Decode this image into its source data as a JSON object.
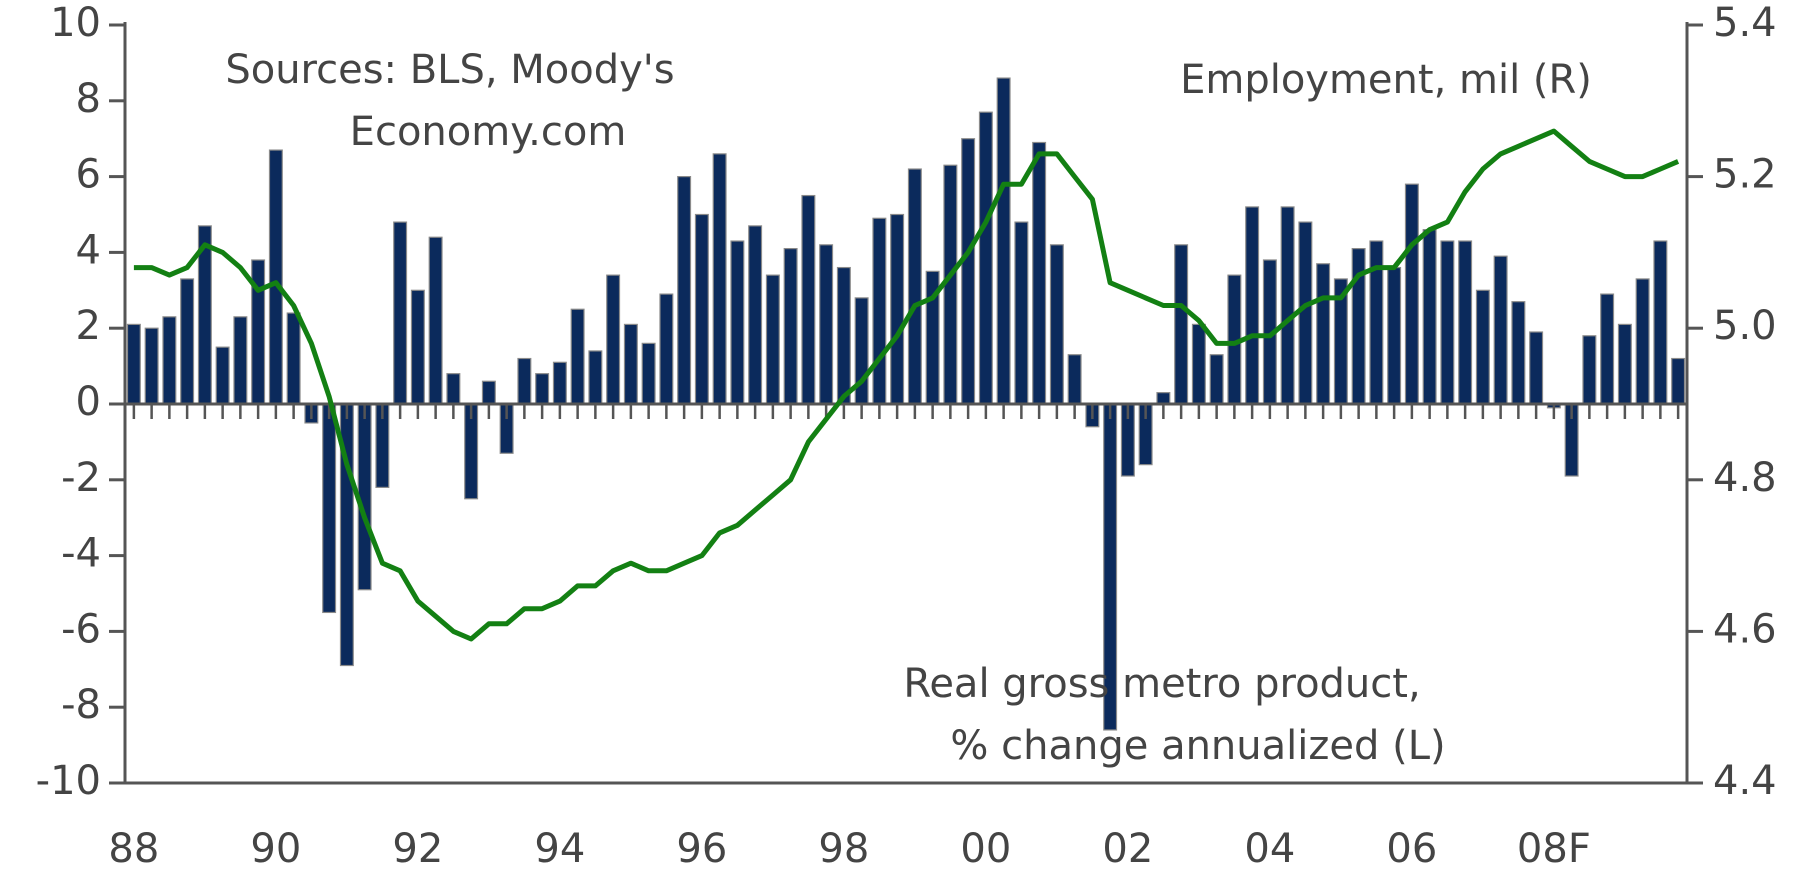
{
  "chart_data": {
    "type": "bar_line",
    "annotations": [
      [
        "Sources: BLS, Moody's",
        "Economy.com"
      ],
      [
        "Employment, mil (R)"
      ],
      [
        "Real gross metro product,",
        "% change annualized (L)"
      ]
    ],
    "categories": [
      "88",
      null,
      null,
      null,
      null,
      null,
      null,
      null,
      "90",
      null,
      null,
      null,
      null,
      null,
      null,
      null,
      "92",
      null,
      null,
      null,
      null,
      null,
      null,
      null,
      "94",
      null,
      null,
      null,
      null,
      null,
      null,
      null,
      "96",
      null,
      null,
      null,
      null,
      null,
      null,
      null,
      "98",
      null,
      null,
      null,
      null,
      null,
      null,
      null,
      "00",
      null,
      null,
      null,
      null,
      null,
      null,
      null,
      "02",
      null,
      null,
      null,
      null,
      null,
      null,
      null,
      "04",
      null,
      null,
      null,
      null,
      null,
      null,
      null,
      "06",
      null,
      null,
      null,
      null,
      null,
      null,
      null,
      "08F",
      null,
      null,
      null,
      null,
      null,
      null,
      null
    ],
    "series": [
      {
        "type": "bar",
        "color": "#0b2a5c",
        "values": [
          2.1,
          2.0,
          2.3,
          3.3,
          4.7,
          1.5,
          2.3,
          3.8,
          6.7,
          2.4,
          -0.5,
          -5.5,
          -6.9,
          -4.9,
          -2.2,
          4.8,
          3.0,
          4.4,
          0.8,
          -2.5,
          0.6,
          -1.3,
          1.2,
          0.8,
          1.1,
          2.5,
          1.4,
          3.4,
          2.1,
          1.6,
          2.9,
          6.0,
          5.0,
          6.6,
          4.3,
          4.7,
          3.4,
          4.1,
          5.5,
          4.2,
          3.6,
          2.8,
          4.9,
          5.0,
          6.2,
          3.5,
          6.3,
          7.0,
          7.7,
          8.6,
          4.8,
          6.9,
          4.2,
          1.3,
          -0.6,
          -8.6,
          -1.9,
          -1.6,
          0.3,
          4.2,
          2.1,
          1.3,
          3.4,
          5.2,
          3.8,
          5.2,
          4.8,
          3.7,
          3.3,
          4.1,
          4.3,
          3.6,
          5.8,
          4.6,
          4.3,
          4.3,
          3.0,
          3.9,
          2.7,
          1.9,
          -0.1,
          -1.9,
          1.8,
          2.9,
          2.1,
          3.3,
          4.3,
          1.2
        ]
      },
      {
        "type": "line",
        "axis": "y2",
        "color": "#138013",
        "values": [
          5.08,
          5.08,
          5.07,
          5.08,
          5.11,
          5.1,
          5.08,
          5.05,
          5.06,
          5.03,
          4.98,
          4.91,
          4.82,
          4.75,
          4.69,
          4.68,
          4.64,
          4.62,
          4.6,
          4.59,
          4.61,
          4.61,
          4.63,
          4.63,
          4.64,
          4.66,
          4.66,
          4.68,
          4.69,
          4.68,
          4.68,
          4.69,
          4.7,
          4.73,
          4.74,
          4.76,
          4.78,
          4.8,
          4.85,
          4.88,
          4.91,
          4.93,
          4.96,
          4.99,
          5.03,
          5.04,
          5.07,
          5.1,
          5.14,
          5.19,
          5.19,
          5.23,
          5.23,
          5.2,
          5.17,
          5.06,
          5.05,
          5.04,
          5.03,
          5.03,
          5.01,
          4.98,
          4.98,
          4.99,
          4.99,
          5.01,
          5.03,
          5.04,
          5.04,
          5.07,
          5.08,
          5.08,
          5.11,
          5.13,
          5.14,
          5.18,
          5.21,
          5.23,
          5.24,
          5.25,
          5.26,
          5.24,
          5.22,
          5.21,
          5.2,
          5.2,
          5.21,
          5.22
        ]
      }
    ],
    "ylim": [
      -10,
      10
    ],
    "yticks": [
      -10,
      -8,
      -6,
      -4,
      -2,
      0,
      2,
      4,
      6,
      8,
      10
    ],
    "y2lim": [
      4.4,
      5.4
    ],
    "y2ticks": [
      4.4,
      4.6,
      4.8,
      {
        "value": 5,
        "label": "5.0"
      },
      5.2,
      5.4
    ]
  }
}
